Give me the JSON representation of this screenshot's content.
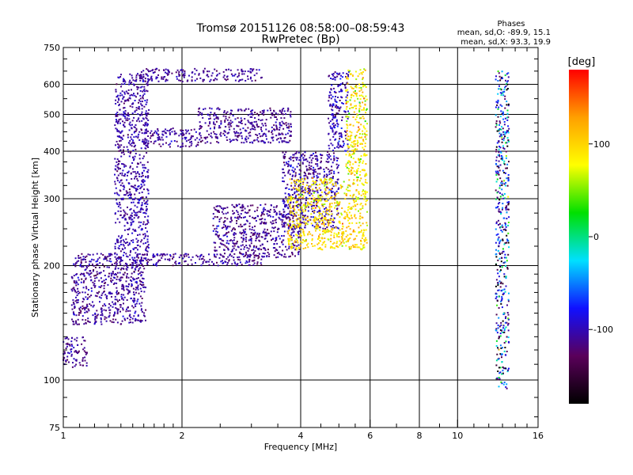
{
  "chart_data": {
    "type": "scatter",
    "title_line1": "Tromsø 20151126 08:58:00–08:59:43",
    "title_line2": "RwPretec (Bp)",
    "xlabel": "Frequency [MHz]",
    "ylabel": "Stationary phase Virtual Height [km]",
    "x_scale": "log",
    "y_scale": "log",
    "xlim": [
      1,
      16
    ],
    "ylim": [
      75,
      750
    ],
    "x_ticks": [
      1,
      2,
      4,
      6,
      8,
      10,
      16
    ],
    "y_ticks": [
      75,
      100,
      200,
      300,
      400,
      500,
      600,
      750
    ],
    "x_gridlines": [
      2,
      4,
      6,
      8,
      10
    ],
    "y_gridlines": [
      100,
      200,
      300,
      400,
      500,
      600
    ],
    "grid": true,
    "phases_title": "Phases",
    "phases_o": "mean, sd,O: -89.9, 15.1",
    "phases_x": "mean, sd,X:  93.3, 19.9",
    "colorbar": {
      "label": "[deg]",
      "ticks": [
        -100,
        0,
        100
      ],
      "range": [
        -180,
        180
      ],
      "colors": [
        "#000000",
        "#5a005a",
        "#1010ff",
        "#00e0ff",
        "#00e000",
        "#ffff00",
        "#ffa000",
        "#ff0000"
      ]
    },
    "series": [
      {
        "x_range": [
          1.35,
          1.65
        ],
        "y_range": [
          200,
          640
        ],
        "phase_mean": -105,
        "phase_sd": 10
      },
      {
        "x_range": [
          1.05,
          1.62
        ],
        "y_range": [
          140,
          215
        ],
        "phase_mean": -110,
        "phase_sd": 12
      },
      {
        "x_range": [
          1.0,
          1.15
        ],
        "y_range": [
          108,
          130
        ],
        "phase_mean": -110,
        "phase_sd": 10
      },
      {
        "x_range": [
          1.6,
          3.2
        ],
        "y_range": [
          200,
          215
        ],
        "phase_mean": -110,
        "phase_sd": 12
      },
      {
        "x_range": [
          2.4,
          4.0
        ],
        "y_range": [
          210,
          290
        ],
        "phase_mean": -110,
        "phase_sd": 12
      },
      {
        "x_range": [
          3.6,
          5.0
        ],
        "y_range": [
          250,
          400
        ],
        "phase_mean": -105,
        "phase_sd": 15
      },
      {
        "x_range": [
          4.7,
          5.3
        ],
        "y_range": [
          400,
          650
        ],
        "phase_mean": -100,
        "phase_sd": 15
      },
      {
        "x_range": [
          1.6,
          2.2
        ],
        "y_range": [
          410,
          460
        ],
        "phase_mean": -110,
        "phase_sd": 10
      },
      {
        "x_range": [
          2.2,
          3.8
        ],
        "y_range": [
          420,
          520
        ],
        "phase_mean": -110,
        "phase_sd": 10
      },
      {
        "x_range": [
          1.55,
          3.2
        ],
        "y_range": [
          610,
          660
        ],
        "phase_mean": -110,
        "phase_sd": 10
      },
      {
        "x_range": [
          3.7,
          5.9
        ],
        "y_range": [
          220,
          340
        ],
        "phase_mean": 95,
        "phase_sd": 20
      },
      {
        "x_range": [
          5.2,
          5.9
        ],
        "y_range": [
          340,
          660
        ],
        "phase_mean": 90,
        "phase_sd": 25
      },
      {
        "x_range": [
          12.5,
          13.5
        ],
        "y_range": [
          95,
          650
        ],
        "phase_mean": -90,
        "phase_sd": 60
      }
    ]
  }
}
